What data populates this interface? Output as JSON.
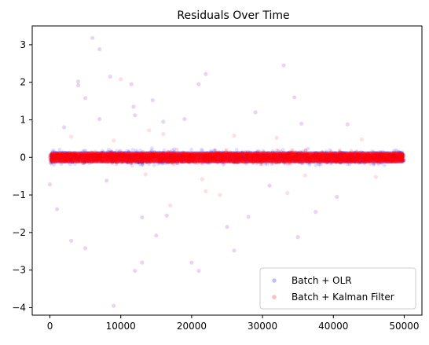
{
  "chart_data": {
    "type": "scatter",
    "title": "Residuals Over Time",
    "xlabel": "",
    "ylabel": "",
    "xlim": [
      -2500,
      52500
    ],
    "ylim": [
      -4.2,
      3.5
    ],
    "xticks": [
      0,
      10000,
      20000,
      30000,
      40000,
      50000
    ],
    "yticks": [
      -4,
      -3,
      -2,
      -1,
      0,
      1,
      2,
      3
    ],
    "grid": false,
    "legend_position": "bottom-right",
    "point_count_per_series": 50000,
    "series": [
      {
        "name": "Batch + OLR",
        "color": "#0000ff",
        "dense_band": [
          -0.3,
          0.3
        ],
        "outliers": [
          {
            "x": 6000,
            "y": 3.18
          },
          {
            "x": 7000,
            "y": 2.88
          },
          {
            "x": 8500,
            "y": 2.15
          },
          {
            "x": 11500,
            "y": 1.95
          },
          {
            "x": 4000,
            "y": 2.02
          },
          {
            "x": 4000,
            "y": 1.92
          },
          {
            "x": 5000,
            "y": 1.58
          },
          {
            "x": 22000,
            "y": 2.22
          },
          {
            "x": 33000,
            "y": 2.45
          },
          {
            "x": 34500,
            "y": 1.6
          },
          {
            "x": 21000,
            "y": 1.95
          },
          {
            "x": 14500,
            "y": 1.52
          },
          {
            "x": 11800,
            "y": 1.35
          },
          {
            "x": 35500,
            "y": 0.9
          },
          {
            "x": 42000,
            "y": 0.88
          },
          {
            "x": 16000,
            "y": 0.95
          },
          {
            "x": 19000,
            "y": 1.02
          },
          {
            "x": 2000,
            "y": 0.8
          },
          {
            "x": 7000,
            "y": 1.02
          },
          {
            "x": 12000,
            "y": 1.12
          },
          {
            "x": 29000,
            "y": 1.2
          },
          {
            "x": 9000,
            "y": -3.95
          },
          {
            "x": 12000,
            "y": -3.02
          },
          {
            "x": 13000,
            "y": -2.8
          },
          {
            "x": 20000,
            "y": -2.8
          },
          {
            "x": 21000,
            "y": -3.02
          },
          {
            "x": 26000,
            "y": -2.48
          },
          {
            "x": 3000,
            "y": -2.22
          },
          {
            "x": 5000,
            "y": -2.42
          },
          {
            "x": 15000,
            "y": -2.08
          },
          {
            "x": 25000,
            "y": -1.85
          },
          {
            "x": 35000,
            "y": -2.12
          },
          {
            "x": 1000,
            "y": -1.38
          },
          {
            "x": 13000,
            "y": -1.6
          },
          {
            "x": 16500,
            "y": -1.55
          },
          {
            "x": 28000,
            "y": -1.58
          },
          {
            "x": 31000,
            "y": -0.75
          },
          {
            "x": 37500,
            "y": -1.45
          },
          {
            "x": 40500,
            "y": -1.05
          },
          {
            "x": 0,
            "y": -0.72
          },
          {
            "x": 8000,
            "y": -0.62
          }
        ]
      },
      {
        "name": "Batch + Kalman Filter",
        "color": "#ff0000",
        "dense_band": [
          -0.25,
          0.25
        ],
        "outliers": [
          {
            "x": 10000,
            "y": 2.08
          },
          {
            "x": 14000,
            "y": 0.72
          },
          {
            "x": 16000,
            "y": 0.62
          },
          {
            "x": 26000,
            "y": 0.58
          },
          {
            "x": 32000,
            "y": 0.52
          },
          {
            "x": 44000,
            "y": 0.48
          },
          {
            "x": 3000,
            "y": 0.55
          },
          {
            "x": 36000,
            "y": -0.48
          },
          {
            "x": 21500,
            "y": -0.58
          },
          {
            "x": 13500,
            "y": -0.45
          },
          {
            "x": 22000,
            "y": -0.9
          },
          {
            "x": 33500,
            "y": -0.95
          },
          {
            "x": 24000,
            "y": -1.0
          },
          {
            "x": 17000,
            "y": -1.28
          },
          {
            "x": 46000,
            "y": -0.52
          },
          {
            "x": 9000,
            "y": 0.45
          }
        ]
      }
    ]
  }
}
